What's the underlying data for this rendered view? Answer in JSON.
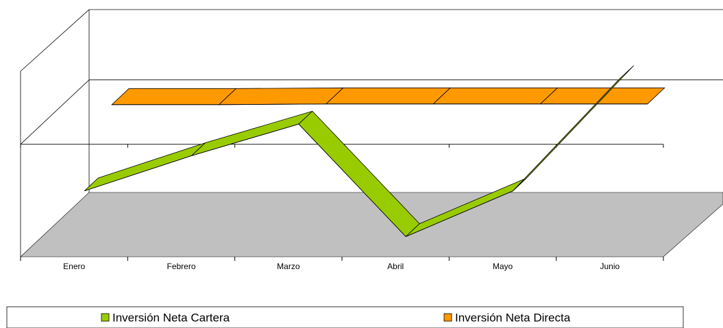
{
  "chart_data": {
    "type": "line3d",
    "categories": [
      "Enero",
      "Febrero",
      "Marzo",
      "Abril",
      "Mayo",
      "Junio"
    ],
    "series": [
      {
        "name": "Inversión Neta Cartera",
        "color": "#99cc00",
        "values": [
          -800,
          -300,
          150,
          -1450,
          -800,
          800
        ]
      },
      {
        "name": "Inversión Neta Directa",
        "color": "#ff9900",
        "values": [
          60,
          60,
          70,
          70,
          70,
          70
        ]
      }
    ],
    "ylim": [
      -1600,
      1000
    ],
    "yticks": [
      0
    ],
    "grid": true,
    "legend": "bottom"
  }
}
